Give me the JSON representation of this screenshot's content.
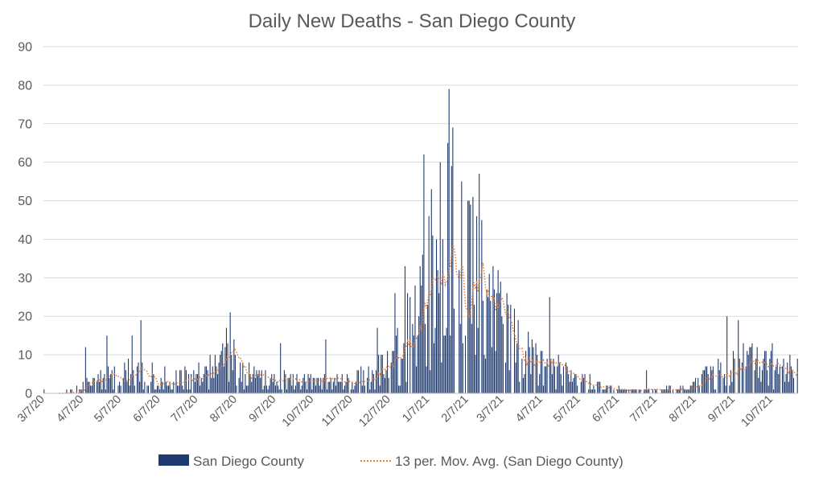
{
  "chart_data": {
    "type": "bar",
    "title": "Daily New Deaths - San Diego County",
    "xlabel": "",
    "ylabel": "",
    "ylim": [
      0,
      90
    ],
    "yticks": [
      0,
      10,
      20,
      30,
      40,
      50,
      60,
      70,
      80,
      90
    ],
    "grid": true,
    "legend_position": "bottom",
    "x_start": "3/7/20",
    "x_end": "10/27/21",
    "day_count": 600,
    "xtick_labels": [
      "3/7/20",
      "4/7/20",
      "5/7/20",
      "6/7/20",
      "7/7/20",
      "8/7/20",
      "9/7/20",
      "10/7/20",
      "11/7/20",
      "12/7/20",
      "1/7/21",
      "2/7/21",
      "3/7/21",
      "4/7/21",
      "5/7/21",
      "6/7/21",
      "7/7/21",
      "8/7/21",
      "9/7/21",
      "10/7/21"
    ],
    "xtick_days": [
      0,
      31,
      61,
      92,
      122,
      153,
      184,
      214,
      245,
      275,
      306,
      337,
      365,
      396,
      426,
      457,
      487,
      518,
      549,
      579
    ],
    "series": [
      {
        "name": "San Diego County",
        "type": "bar",
        "color": "#1f3a6e",
        "daily_deaths_approx": "see key_points; one bar per day",
        "key_points": [
          {
            "date": "3/7/20",
            "value": 1
          },
          {
            "date": "4/9/20",
            "value": 12
          },
          {
            "date": "4/26/20",
            "value": 15
          },
          {
            "date": "5/16/20",
            "value": 15
          },
          {
            "date": "5/23/20",
            "value": 19
          },
          {
            "date": "7/30/20",
            "value": 17
          },
          {
            "date": "8/2/20",
            "value": 21
          },
          {
            "date": "8/5/20",
            "value": 14
          },
          {
            "date": "9/11/20",
            "value": 13
          },
          {
            "date": "10/17/20",
            "value": 14
          },
          {
            "date": "11/27/20",
            "value": 17
          },
          {
            "date": "12/11/20",
            "value": 26
          },
          {
            "date": "12/19/20",
            "value": 33
          },
          {
            "date": "1/3/21",
            "value": 62
          },
          {
            "date": "1/9/21",
            "value": 53
          },
          {
            "date": "1/16/21",
            "value": 60
          },
          {
            "date": "1/22/21",
            "value": 65
          },
          {
            "date": "1/23/21",
            "value": 79
          },
          {
            "date": "1/26/21",
            "value": 69
          },
          {
            "date": "2/2/21",
            "value": 55
          },
          {
            "date": "2/8/21",
            "value": 50
          },
          {
            "date": "2/16/21",
            "value": 57
          },
          {
            "date": "3/6/21",
            "value": 20
          },
          {
            "date": "4/13/21",
            "value": 25
          },
          {
            "date": "4/20/21",
            "value": 10
          },
          {
            "date": "6/29/21",
            "value": 6
          },
          {
            "date": "9/1/21",
            "value": 20
          },
          {
            "date": "9/10/21",
            "value": 19
          },
          {
            "date": "10/7/21",
            "value": 13
          }
        ]
      },
      {
        "name": "13 per. Mov. Avg. (San Diego County)",
        "type": "line",
        "style": "dotted",
        "color": "#ed7d31",
        "window": 13,
        "key_points": [
          {
            "date": "4/7/20",
            "value": 2
          },
          {
            "date": "5/7/20",
            "value": 5
          },
          {
            "date": "6/7/20",
            "value": 4
          },
          {
            "date": "7/7/20",
            "value": 4
          },
          {
            "date": "7/28/20",
            "value": 8
          },
          {
            "date": "8/7/20",
            "value": 5
          },
          {
            "date": "9/7/20",
            "value": 3
          },
          {
            "date": "10/7/20",
            "value": 3
          },
          {
            "date": "11/7/20",
            "value": 3
          },
          {
            "date": "12/7/20",
            "value": 6
          },
          {
            "date": "12/27/20",
            "value": 17
          },
          {
            "date": "1/7/21",
            "value": 28
          },
          {
            "date": "1/21/21",
            "value": 39
          },
          {
            "date": "2/7/21",
            "value": 30
          },
          {
            "date": "3/7/21",
            "value": 15
          },
          {
            "date": "4/7/21",
            "value": 6
          },
          {
            "date": "5/7/21",
            "value": 3
          },
          {
            "date": "6/7/21",
            "value": 1
          },
          {
            "date": "7/7/21",
            "value": 0.5
          },
          {
            "date": "8/7/21",
            "value": 2
          },
          {
            "date": "8/26/21",
            "value": 6
          },
          {
            "date": "9/10/21",
            "value": 8
          },
          {
            "date": "10/7/21",
            "value": 6
          },
          {
            "date": "10/27/21",
            "value": 5
          }
        ]
      }
    ],
    "legend": [
      {
        "label": "San Diego County",
        "marker": "bar",
        "color": "#1f3a6e"
      },
      {
        "label": "13 per. Mov. Avg. (San Diego County)",
        "marker": "dotted-line",
        "color": "#ed7d31"
      }
    ]
  }
}
